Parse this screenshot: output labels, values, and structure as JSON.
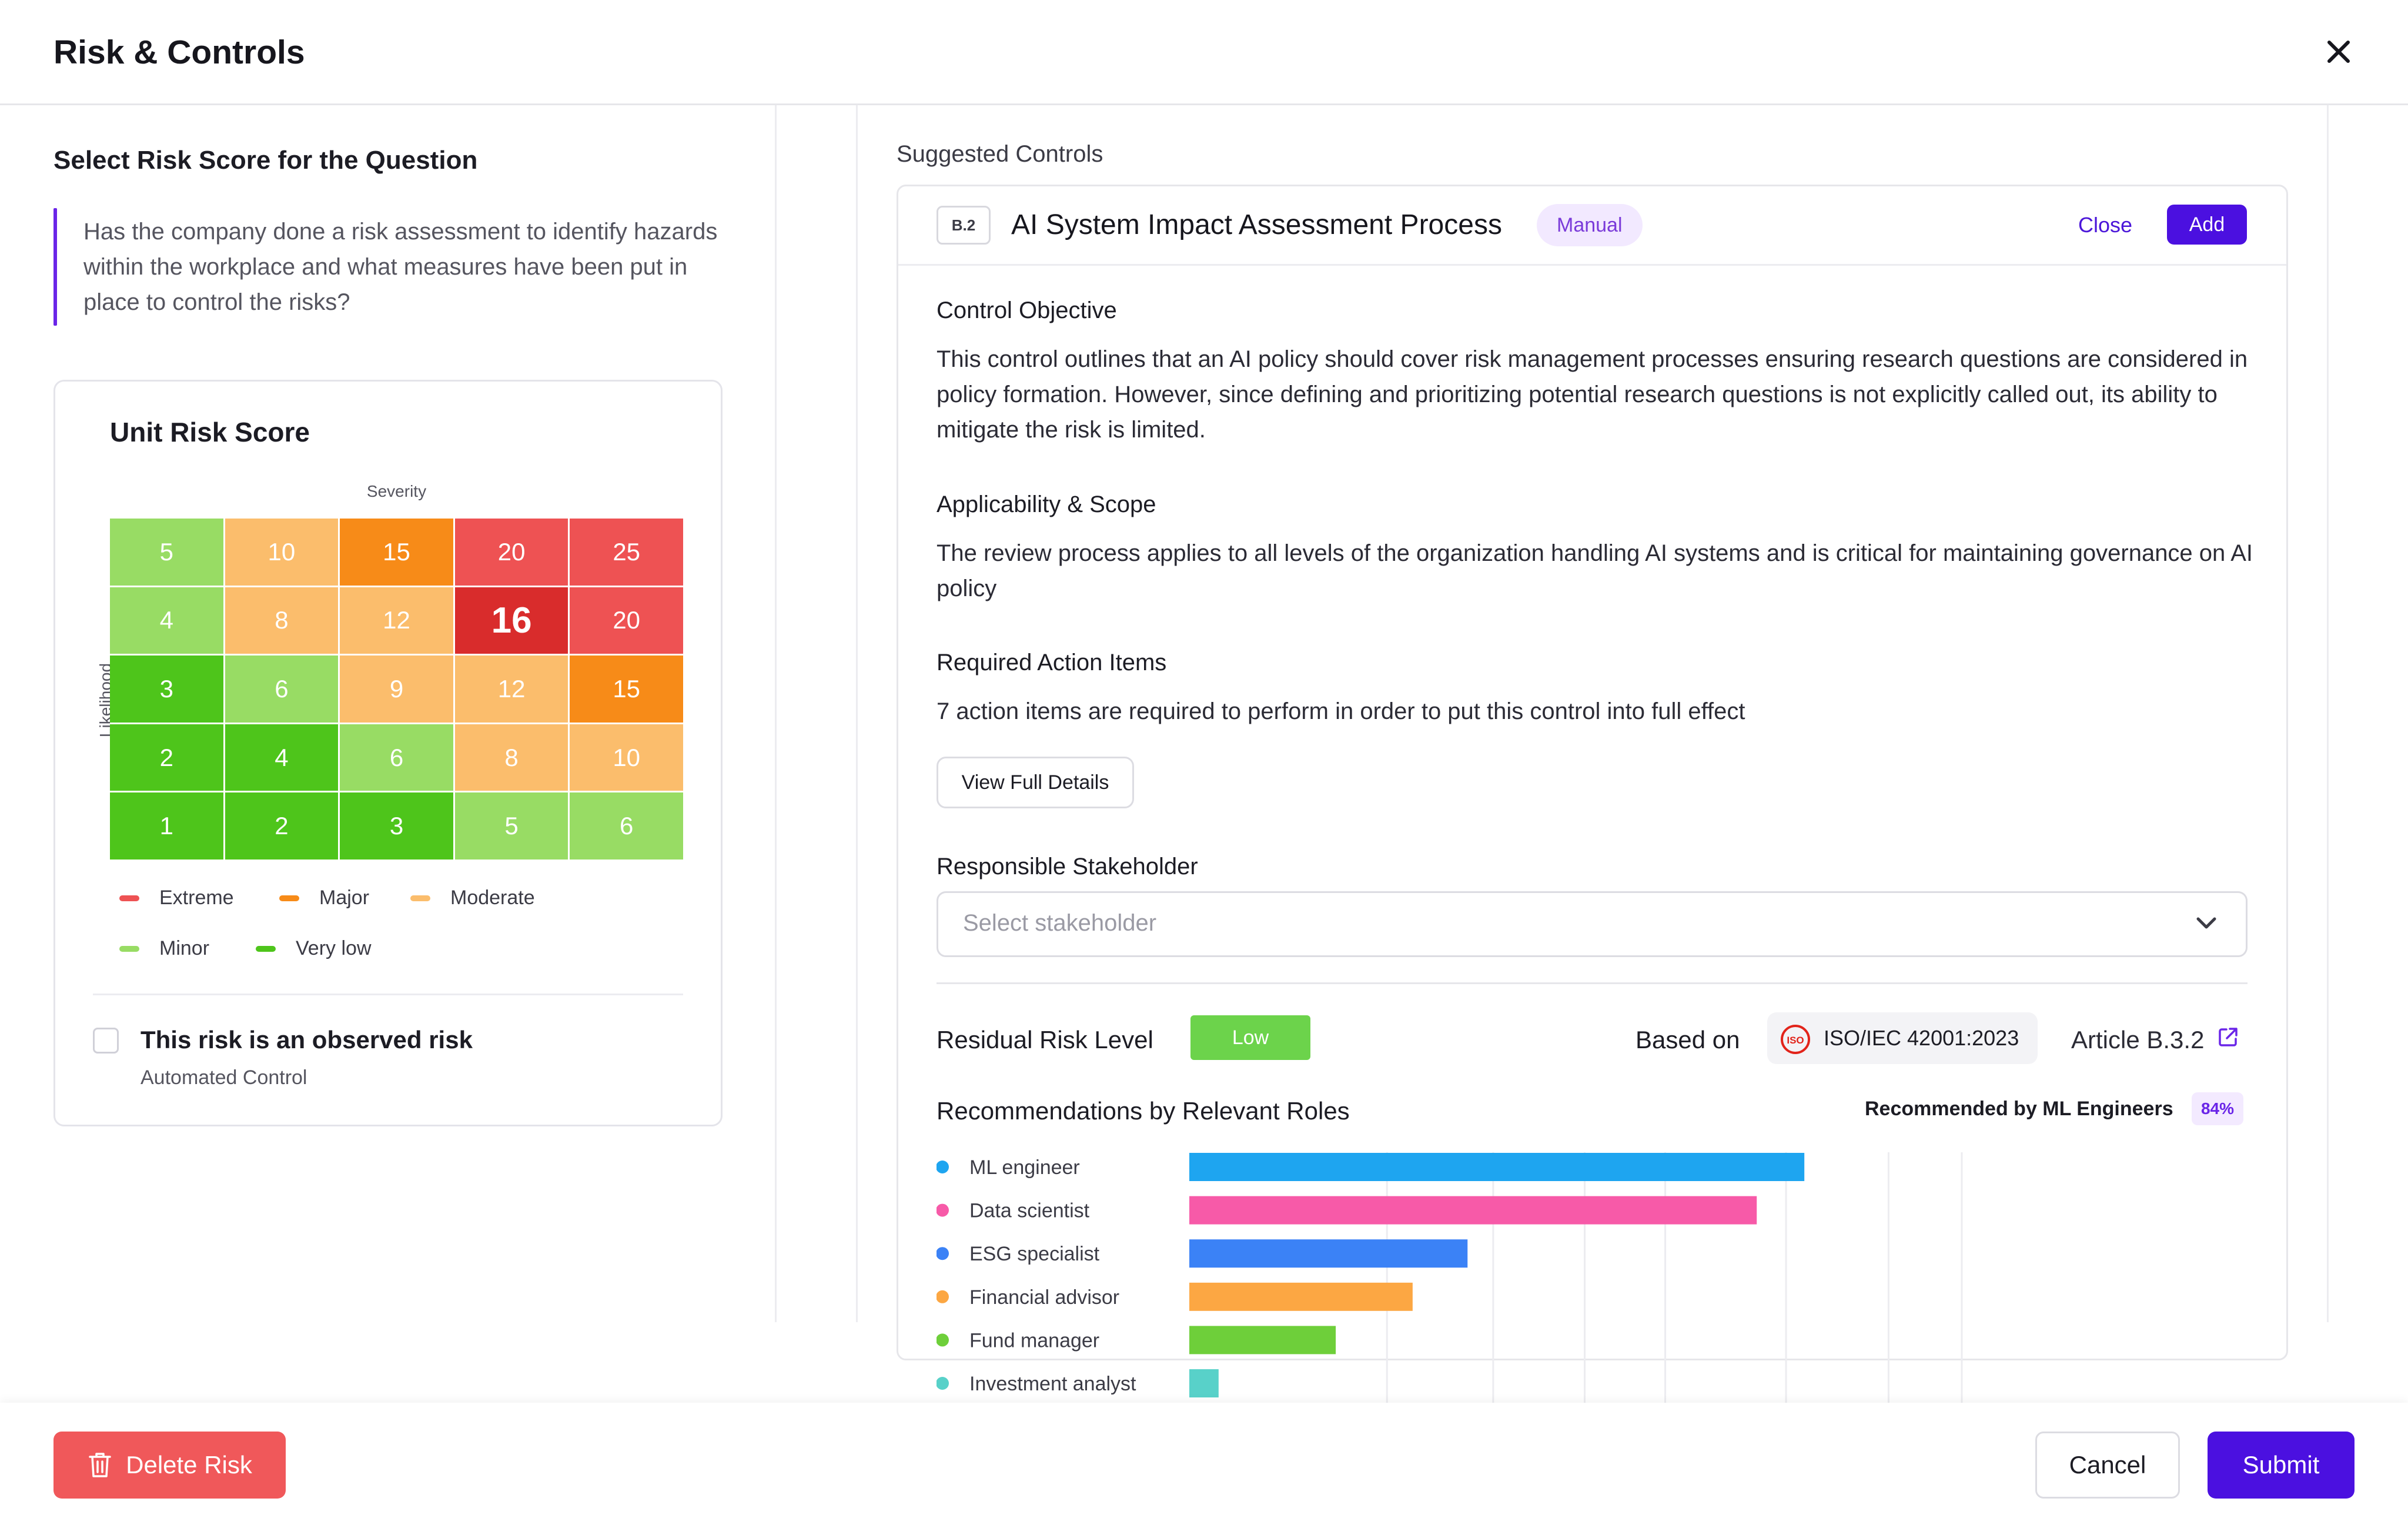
{
  "header": {
    "title": "Risk & Controls",
    "close_icon": "close-icon"
  },
  "left": {
    "title": "Select Risk Score for the Question",
    "question": "Has the company done a risk assessment to identify hazards within the workplace and what measures have been put in place to control the risks?",
    "card": {
      "title": "Unit Risk Score",
      "severity_label": "Severity",
      "likelihood_label": "Likelihood",
      "matrix": [
        [
          {
            "v": "5",
            "level": "minor"
          },
          {
            "v": "10",
            "level": "moderate"
          },
          {
            "v": "15",
            "level": "major"
          },
          {
            "v": "20",
            "level": "extreme"
          },
          {
            "v": "25",
            "level": "extreme"
          }
        ],
        [
          {
            "v": "4",
            "level": "minor"
          },
          {
            "v": "8",
            "level": "moderate"
          },
          {
            "v": "12",
            "level": "moderate"
          },
          {
            "v": "16",
            "level": "selected"
          },
          {
            "v": "20",
            "level": "extreme"
          }
        ],
        [
          {
            "v": "3",
            "level": "verylow"
          },
          {
            "v": "6",
            "level": "minor"
          },
          {
            "v": "9",
            "level": "moderate"
          },
          {
            "v": "12",
            "level": "moderate"
          },
          {
            "v": "15",
            "level": "major"
          }
        ],
        [
          {
            "v": "2",
            "level": "verylow"
          },
          {
            "v": "4",
            "level": "verylow"
          },
          {
            "v": "6",
            "level": "minor"
          },
          {
            "v": "8",
            "level": "moderate"
          },
          {
            "v": "10",
            "level": "moderate"
          }
        ],
        [
          {
            "v": "1",
            "level": "verylow"
          },
          {
            "v": "2",
            "level": "verylow"
          },
          {
            "v": "3",
            "level": "verylow"
          },
          {
            "v": "5",
            "level": "minor"
          },
          {
            "v": "6",
            "level": "minor"
          }
        ]
      ],
      "level_colors": {
        "extreme": "#ee5253",
        "major": "#f78b18",
        "moderate": "#fbbd6c",
        "minor": "#98dc64",
        "verylow": "#4ec51b",
        "selected": "#d92c2c"
      },
      "legend": [
        {
          "label": "Extreme",
          "color": "#ee5253"
        },
        {
          "label": "Major",
          "color": "#f78b18"
        },
        {
          "label": "Moderate",
          "color": "#fbbd6c"
        },
        {
          "label": "Minor",
          "color": "#98dc64"
        },
        {
          "label": "Very low",
          "color": "#4ec51b"
        }
      ],
      "observed_label": "This risk is an observed risk",
      "automated_label": "Automated Control"
    }
  },
  "right": {
    "suggested_label": "Suggested Controls",
    "control": {
      "code": "B.2",
      "title": "AI System Impact Assessment Process",
      "badge": "Manual",
      "close_label": "Close",
      "add_label": "Add",
      "objective_title": "Control Objective",
      "objective_body": "This control outlines that an AI policy should cover risk management processes ensuring research questions are considered in policy formation. However, since defining and prioritizing potential research questions is not explicitly called out, its ability to mitigate the risk is limited.",
      "scope_title": "Applicability & Scope",
      "scope_body": "The review process applies to all levels of the organization handling AI systems and is critical for maintaining governance on AI policy",
      "actions_title": "Required Action Items",
      "actions_body": "7 action items are required to perform in order to put this control into full effect",
      "view_details_label": "View Full Details",
      "stakeholder_title": "Responsible Stakeholder",
      "stakeholder_placeholder": "Select stakeholder",
      "residual_label": "Residual Risk Level",
      "residual_value": "Low",
      "based_on_label": "Based on",
      "standard_logo_text": "ISO",
      "standard": "ISO/IEC 42001:2023",
      "article": "Article B.3.2",
      "recommendations_title": "Recommendations by Relevant Roles",
      "recommended_by": "Recommended by ML Engineers",
      "recommended_pct": "84%"
    }
  },
  "chart_data": {
    "type": "bar",
    "orientation": "horizontal",
    "categories": [
      "ML engineer",
      "Data scientist",
      "ESG specialist",
      "Financial advisor",
      "Fund manager",
      "Investment analyst"
    ],
    "values": [
      84,
      77.5,
      38,
      30.5,
      20,
      4
    ],
    "colors": [
      "#1ea5f0",
      "#f75aa8",
      "#3b82f6",
      "#fca743",
      "#6ecf3a",
      "#58d1c9"
    ],
    "xlim": [
      0,
      110
    ],
    "grid": true
  },
  "footer": {
    "delete_label": "Delete Risk",
    "cancel_label": "Cancel",
    "submit_label": "Submit"
  }
}
